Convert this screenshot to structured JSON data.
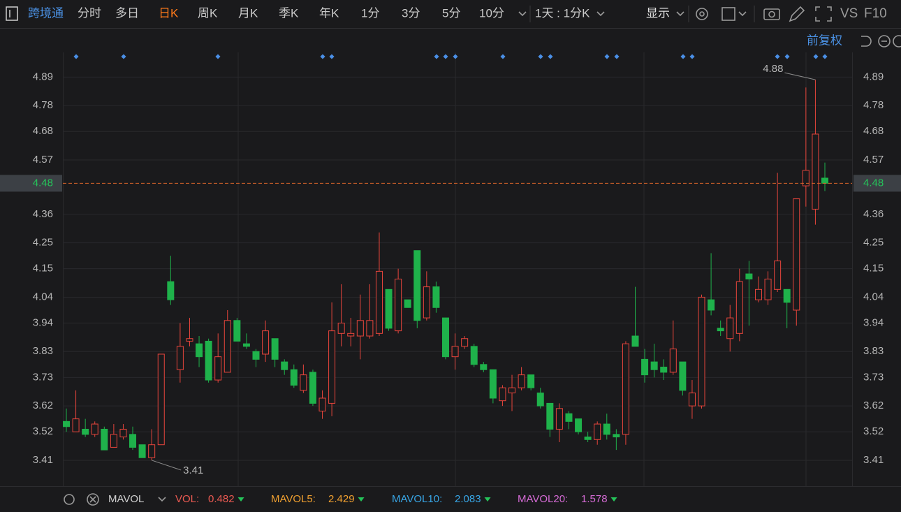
{
  "toolbar": {
    "stock": "跨境通",
    "tabs": [
      "分时",
      "多日",
      "日K",
      "周K",
      "月K",
      "季K",
      "年K",
      "1分",
      "3分",
      "5分",
      "10分"
    ],
    "interval": "1天 : 1分K",
    "display": "显示",
    "vs": "VS",
    "f10": "F10"
  },
  "adjust": "前复权",
  "chart_data": {
    "type": "candlestick",
    "up_color": "#e8453c",
    "down_color": "#1fb24b",
    "grid": true,
    "ylim": [
      3.31,
      5.08
    ],
    "yticks": [
      3.41,
      3.52,
      3.62,
      3.73,
      3.83,
      3.94,
      4.04,
      4.15,
      4.25,
      4.36,
      4.57,
      4.68,
      4.78,
      4.89
    ],
    "open": [
      3.56,
      3.52,
      3.53,
      3.51,
      3.53,
      3.46,
      3.5,
      3.51,
      3.47,
      3.42,
      3.47,
      4.1,
      3.76,
      3.87,
      3.86,
      3.87,
      3.72,
      3.75,
      3.95,
      3.86,
      3.83,
      3.82,
      3.88,
      3.79,
      3.76,
      3.68,
      3.75,
      3.6,
      3.63,
      3.9,
      3.89,
      3.89,
      3.89,
      3.9,
      4.07,
      3.91,
      4.03,
      4.22,
      3.96,
      4.08,
      3.96,
      3.81,
      3.85,
      3.85,
      3.78,
      3.76,
      3.64,
      3.67,
      3.69,
      3.74,
      3.67,
      3.63,
      3.53,
      3.59,
      3.57,
      3.5,
      3.49,
      3.55,
      3.51,
      3.51,
      3.89,
      3.8,
      3.79,
      3.77,
      3.75,
      3.79,
      3.62,
      3.62,
      4.03,
      3.92,
      3.88,
      3.9,
      4.13,
      4.03,
      4.03,
      4.07,
      4.07,
      3.99,
      4.47,
      4.38,
      4.5
    ],
    "high": [
      3.61,
      3.68,
      3.57,
      3.56,
      3.54,
      3.55,
      3.55,
      3.54,
      3.47,
      3.53,
      3.82,
      4.2,
      3.94,
      3.96,
      3.89,
      3.88,
      3.9,
      3.99,
      3.96,
      3.9,
      3.84,
      3.95,
      3.88,
      3.8,
      3.78,
      3.78,
      3.76,
      3.68,
      4.02,
      4.09,
      3.96,
      4.05,
      4.09,
      4.29,
      4.07,
      4.15,
      4.03,
      4.22,
      4.14,
      4.1,
      3.96,
      3.9,
      3.89,
      3.86,
      3.79,
      3.76,
      3.7,
      3.74,
      3.77,
      3.74,
      3.69,
      3.63,
      3.63,
      3.6,
      3.57,
      3.52,
      3.56,
      3.59,
      3.53,
      3.87,
      4.08,
      3.84,
      3.86,
      3.8,
      3.95,
      3.79,
      3.72,
      4.05,
      4.21,
      3.95,
      4.01,
      4.15,
      4.18,
      4.12,
      4.14,
      4.52,
      4.07,
      4.42,
      4.85,
      4.88,
      4.56
    ],
    "low": [
      3.52,
      3.52,
      3.5,
      3.5,
      3.45,
      3.46,
      3.49,
      3.45,
      3.42,
      3.41,
      3.47,
      4.01,
      3.71,
      3.85,
      3.77,
      3.71,
      3.71,
      3.75,
      3.87,
      3.84,
      3.77,
      3.79,
      3.77,
      3.74,
      3.69,
      3.67,
      3.62,
      3.57,
      3.58,
      3.85,
      3.85,
      3.8,
      3.88,
      3.89,
      3.91,
      3.9,
      4.0,
      3.92,
      3.95,
      3.98,
      3.8,
      3.76,
      3.84,
      3.77,
      3.75,
      3.63,
      3.62,
      3.6,
      3.68,
      3.68,
      3.61,
      3.5,
      3.48,
      3.53,
      3.51,
      3.48,
      3.47,
      3.49,
      3.45,
      3.47,
      3.85,
      3.71,
      3.73,
      3.72,
      3.74,
      3.66,
      3.57,
      3.61,
      3.97,
      3.89,
      3.83,
      3.87,
      3.93,
      4.02,
      4.01,
      4.06,
      3.92,
      3.93,
      4.39,
      4.32,
      4.45
    ],
    "close": [
      3.54,
      3.57,
      3.51,
      3.55,
      3.45,
      3.51,
      3.53,
      3.46,
      3.42,
      3.47,
      3.82,
      4.03,
      3.85,
      3.88,
      3.81,
      3.72,
      3.81,
      3.95,
      3.87,
      3.85,
      3.8,
      3.91,
      3.8,
      3.76,
      3.7,
      3.74,
      3.63,
      3.65,
      3.91,
      3.94,
      3.9,
      3.95,
      3.95,
      4.14,
      3.92,
      4.11,
      4.0,
      3.95,
      4.08,
      4.0,
      3.81,
      3.85,
      3.88,
      3.78,
      3.76,
      3.65,
      3.69,
      3.69,
      3.74,
      3.69,
      3.62,
      3.53,
      3.61,
      3.56,
      3.52,
      3.49,
      3.55,
      3.51,
      3.5,
      3.86,
      3.85,
      3.74,
      3.76,
      3.75,
      3.84,
      3.68,
      3.67,
      4.04,
      3.99,
      3.91,
      3.96,
      4.1,
      4.11,
      4.07,
      4.11,
      4.18,
      4.02,
      4.42,
      4.53,
      4.67,
      4.48
    ]
  },
  "indicator_bar": {
    "name": "MAVOL",
    "items": [
      {
        "label": "VOL:",
        "value": 0.482,
        "color": "#ec5a52"
      },
      {
        "label": "MAVOL5:",
        "value": 2.429,
        "color": "#f0a030"
      },
      {
        "label": "MAVOL10:",
        "value": 2.083,
        "color": "#38a6e6"
      },
      {
        "label": "MAVOL20:",
        "value": 1.578,
        "color": "#d56bd5"
      }
    ]
  }
}
